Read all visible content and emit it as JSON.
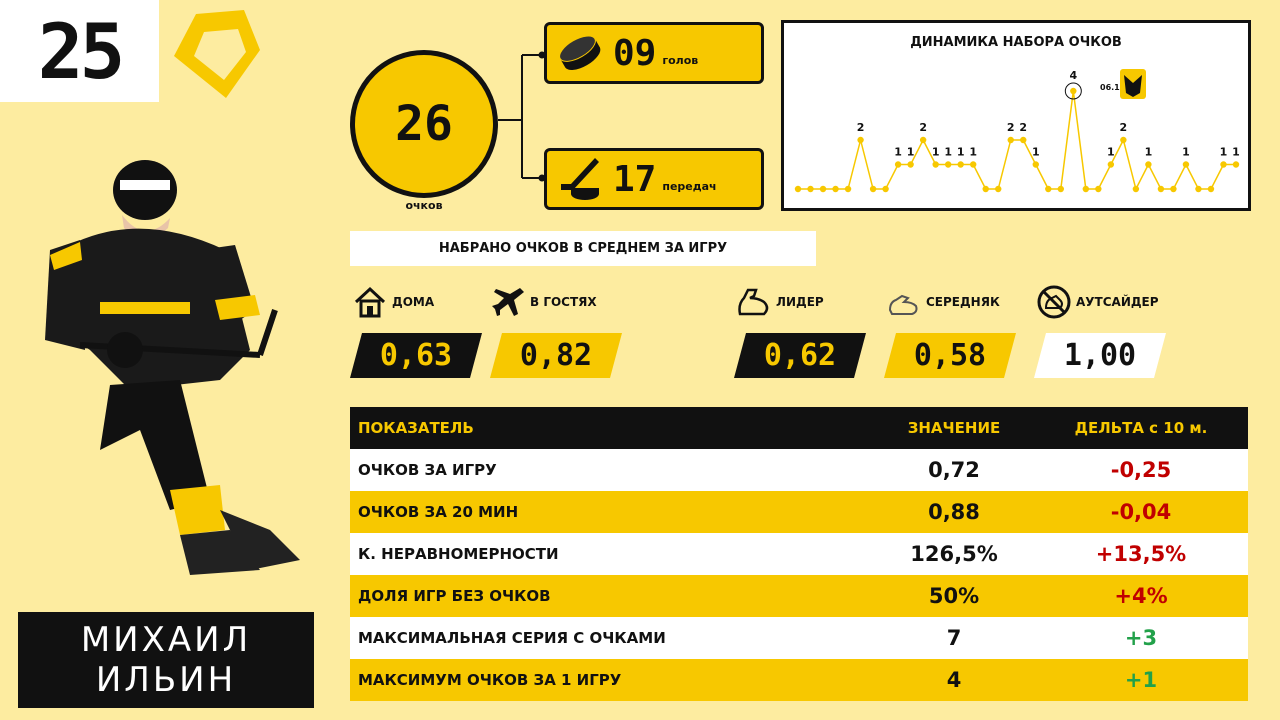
{
  "player": {
    "number": "25",
    "name_line1": "МИХАИЛ",
    "name_line2": "ИЛЬИН"
  },
  "totals": {
    "points": "26",
    "points_label": "очков",
    "goals": "09",
    "goals_label": "голов",
    "assists": "17",
    "assists_label": "передач"
  },
  "chart": {
    "title": "ДИНАМИКА НАБОРА ОЧКОВ",
    "highlight_date": "06.11"
  },
  "chart_data": {
    "type": "line",
    "title": "ДИНАМИКА НАБОРА ОЧКОВ",
    "x": [
      1,
      2,
      3,
      4,
      5,
      6,
      7,
      8,
      9,
      10,
      11,
      12,
      13,
      14,
      15,
      16,
      17,
      18,
      19,
      20,
      21,
      22,
      23,
      24,
      25,
      26,
      27,
      28,
      29,
      30,
      31,
      32,
      33,
      34,
      35,
      36
    ],
    "values": [
      0,
      0,
      0,
      0,
      0,
      2,
      0,
      0,
      1,
      1,
      2,
      1,
      1,
      1,
      1,
      0,
      0,
      2,
      2,
      1,
      0,
      0,
      4,
      0,
      0,
      1,
      2,
      0,
      1,
      0,
      0,
      1,
      0,
      0,
      1,
      1
    ],
    "ylim": [
      0,
      4
    ],
    "grid": false,
    "color": "#f7c800"
  },
  "averages": {
    "banner": "НАБРАНО ОЧКОВ В СРЕДНЕМ ЗА ИГРУ",
    "home_label": "ДОМА",
    "home_value": "0,63",
    "away_label": "В ГОСТЯХ",
    "away_value": "0,82",
    "leader_label": "ЛИДЕР",
    "leader_value": "0,62",
    "mid_label": "СЕРЕДНЯК",
    "mid_value": "0,58",
    "outsider_label": "АУТСАЙДЕР",
    "outsider_value": "1,00"
  },
  "table": {
    "headers": [
      "ПОКАЗАТЕЛЬ",
      "ЗНАЧЕНИЕ",
      "ДЕЛЬТА с 10 м."
    ],
    "rows": [
      {
        "label": "ОЧКОВ ЗА ИГРУ",
        "value": "0,72",
        "delta": "-0,25",
        "sign": "neg"
      },
      {
        "label": "ОЧКОВ ЗА 20 МИН",
        "value": "0,88",
        "delta": "-0,04",
        "sign": "neg"
      },
      {
        "label": "К. НЕРАВНОМЕРНОСТИ",
        "value": "126,5%",
        "delta": "+13,5%",
        "sign": "neg"
      },
      {
        "label": "ДОЛЯ ИГР БЕЗ ОЧКОВ",
        "value": "50%",
        "delta": "+4%",
        "sign": "neg"
      },
      {
        "label": "МАКСИМАЛЬНАЯ СЕРИЯ С ОЧКАМИ",
        "value": "7",
        "delta": "+3",
        "sign": "pos"
      },
      {
        "label": "МАКСИМУМ ОЧКОВ ЗА 1 ИГРУ",
        "value": "4",
        "delta": "+1",
        "sign": "pos"
      }
    ]
  }
}
